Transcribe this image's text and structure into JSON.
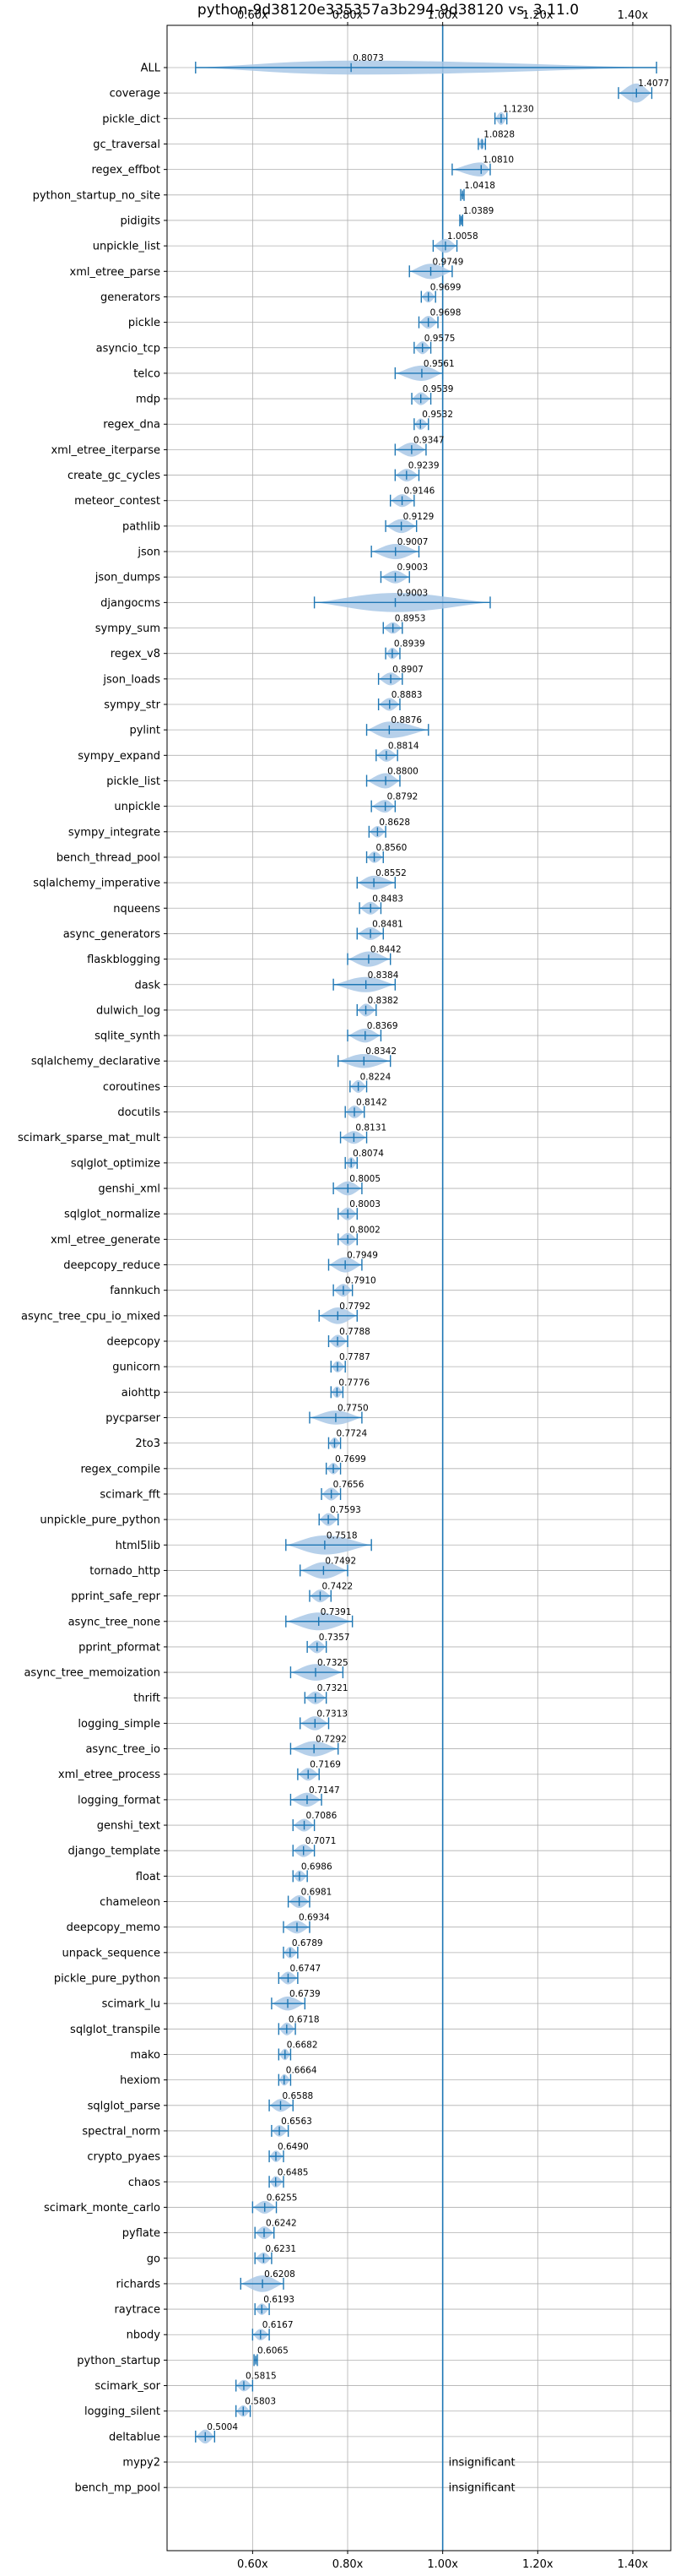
{
  "chart_data": {
    "type": "violin",
    "title": "python-9d38120e335357a3b294-9d38120 vs. 3.11.0",
    "xlim": [
      0.42,
      1.48
    ],
    "x_ticks": [
      0.6,
      0.8,
      1.0,
      1.2,
      1.4
    ],
    "x_tick_labels": [
      "0.60x",
      "0.80x",
      "1.00x",
      "1.20x",
      "1.40x"
    ],
    "reference_line": 1.0,
    "grid": true,
    "colors": {
      "violin": "#1f77b4",
      "violin_fill": "#a9c8e6",
      "reference": "#1f77b4",
      "grid": "#b0b0b0"
    },
    "rows": [
      {
        "name": "ALL",
        "label": "0.8073",
        "median": 0.8073,
        "min": 0.48,
        "max": 1.45,
        "width": 0.55
      },
      {
        "name": "coverage",
        "label": "1.4077",
        "median": 1.4077,
        "min": 1.37,
        "max": 1.44,
        "width": 0.75
      },
      {
        "name": "pickle_dict",
        "label": "1.1230",
        "median": 1.123,
        "min": 1.11,
        "max": 1.135,
        "width": 0.5
      },
      {
        "name": "gc_traversal",
        "label": "1.0828",
        "median": 1.0828,
        "min": 1.075,
        "max": 1.09,
        "width": 0.45
      },
      {
        "name": "regex_effbot",
        "label": "1.0810",
        "median": 1.081,
        "min": 1.02,
        "max": 1.1,
        "width": 0.55
      },
      {
        "name": "python_startup_no_site",
        "label": "1.0418",
        "median": 1.0418,
        "min": 1.038,
        "max": 1.045,
        "width": 0.3
      },
      {
        "name": "pidigits",
        "label": "1.0389",
        "median": 1.0389,
        "min": 1.036,
        "max": 1.042,
        "width": 0.3
      },
      {
        "name": "unpickle_list",
        "label": "1.0058",
        "median": 1.0058,
        "min": 0.98,
        "max": 1.03,
        "width": 0.55
      },
      {
        "name": "xml_etree_parse",
        "label": "0.9749",
        "median": 0.9749,
        "min": 0.93,
        "max": 1.02,
        "width": 0.6
      },
      {
        "name": "generators",
        "label": "0.9699",
        "median": 0.9699,
        "min": 0.955,
        "max": 0.985,
        "width": 0.45
      },
      {
        "name": "pickle",
        "label": "0.9698",
        "median": 0.9698,
        "min": 0.95,
        "max": 0.99,
        "width": 0.5
      },
      {
        "name": "asyncio_tcp",
        "label": "0.9575",
        "median": 0.9575,
        "min": 0.94,
        "max": 0.975,
        "width": 0.5
      },
      {
        "name": "telco",
        "label": "0.9561",
        "median": 0.9561,
        "min": 0.9,
        "max": 1.0,
        "width": 0.6
      },
      {
        "name": "mdp",
        "label": "0.9539",
        "median": 0.9539,
        "min": 0.935,
        "max": 0.975,
        "width": 0.5
      },
      {
        "name": "regex_dna",
        "label": "0.9532",
        "median": 0.9532,
        "min": 0.94,
        "max": 0.97,
        "width": 0.45
      },
      {
        "name": "xml_etree_iterparse",
        "label": "0.9347",
        "median": 0.9347,
        "min": 0.9,
        "max": 0.965,
        "width": 0.55
      },
      {
        "name": "create_gc_cycles",
        "label": "0.9239",
        "median": 0.9239,
        "min": 0.9,
        "max": 0.95,
        "width": 0.5
      },
      {
        "name": "meteor_contest",
        "label": "0.9146",
        "median": 0.9146,
        "min": 0.89,
        "max": 0.94,
        "width": 0.5
      },
      {
        "name": "pathlib",
        "label": "0.9129",
        "median": 0.9129,
        "min": 0.88,
        "max": 0.945,
        "width": 0.55
      },
      {
        "name": "json",
        "label": "0.9007",
        "median": 0.9007,
        "min": 0.85,
        "max": 0.95,
        "width": 0.6
      },
      {
        "name": "json_dumps",
        "label": "0.9003",
        "median": 0.9003,
        "min": 0.87,
        "max": 0.93,
        "width": 0.5
      },
      {
        "name": "djangocms",
        "label": "0.9003",
        "median": 0.9003,
        "min": 0.73,
        "max": 1.1,
        "width": 0.75
      },
      {
        "name": "sympy_sum",
        "label": "0.8953",
        "median": 0.8953,
        "min": 0.875,
        "max": 0.915,
        "width": 0.45
      },
      {
        "name": "regex_v8",
        "label": "0.8939",
        "median": 0.8939,
        "min": 0.88,
        "max": 0.91,
        "width": 0.45
      },
      {
        "name": "json_loads",
        "label": "0.8907",
        "median": 0.8907,
        "min": 0.865,
        "max": 0.915,
        "width": 0.5
      },
      {
        "name": "sympy_str",
        "label": "0.8883",
        "median": 0.8883,
        "min": 0.865,
        "max": 0.91,
        "width": 0.5
      },
      {
        "name": "pylint",
        "label": "0.8876",
        "median": 0.8876,
        "min": 0.84,
        "max": 0.97,
        "width": 0.65
      },
      {
        "name": "sympy_expand",
        "label": "0.8814",
        "median": 0.8814,
        "min": 0.86,
        "max": 0.905,
        "width": 0.5
      },
      {
        "name": "pickle_list",
        "label": "0.8800",
        "median": 0.88,
        "min": 0.84,
        "max": 0.91,
        "width": 0.6
      },
      {
        "name": "unpickle",
        "label": "0.8792",
        "median": 0.8792,
        "min": 0.85,
        "max": 0.9,
        "width": 0.5
      },
      {
        "name": "sympy_integrate",
        "label": "0.8628",
        "median": 0.8628,
        "min": 0.845,
        "max": 0.88,
        "width": 0.45
      },
      {
        "name": "bench_thread_pool",
        "label": "0.8560",
        "median": 0.856,
        "min": 0.84,
        "max": 0.875,
        "width": 0.45
      },
      {
        "name": "sqlalchemy_imperative",
        "label": "0.8552",
        "median": 0.8552,
        "min": 0.82,
        "max": 0.9,
        "width": 0.55
      },
      {
        "name": "nqueens",
        "label": "0.8483",
        "median": 0.8483,
        "min": 0.825,
        "max": 0.87,
        "width": 0.5
      },
      {
        "name": "async_generators",
        "label": "0.8481",
        "median": 0.8481,
        "min": 0.82,
        "max": 0.875,
        "width": 0.5
      },
      {
        "name": "flaskblogging",
        "label": "0.8442",
        "median": 0.8442,
        "min": 0.8,
        "max": 0.89,
        "width": 0.6
      },
      {
        "name": "dask",
        "label": "0.8384",
        "median": 0.8384,
        "min": 0.77,
        "max": 0.9,
        "width": 0.6
      },
      {
        "name": "dulwich_log",
        "label": "0.8382",
        "median": 0.8382,
        "min": 0.82,
        "max": 0.86,
        "width": 0.5
      },
      {
        "name": "sqlite_synth",
        "label": "0.8369",
        "median": 0.8369,
        "min": 0.8,
        "max": 0.87,
        "width": 0.55
      },
      {
        "name": "sqlalchemy_declarative",
        "label": "0.8342",
        "median": 0.8342,
        "min": 0.78,
        "max": 0.89,
        "width": 0.55
      },
      {
        "name": "coroutines",
        "label": "0.8224",
        "median": 0.8224,
        "min": 0.805,
        "max": 0.84,
        "width": 0.5
      },
      {
        "name": "docutils",
        "label": "0.8142",
        "median": 0.8142,
        "min": 0.795,
        "max": 0.835,
        "width": 0.5
      },
      {
        "name": "scimark_sparse_mat_mult",
        "label": "0.8131",
        "median": 0.8131,
        "min": 0.785,
        "max": 0.84,
        "width": 0.5
      },
      {
        "name": "sqlglot_optimize",
        "label": "0.8074",
        "median": 0.8074,
        "min": 0.795,
        "max": 0.82,
        "width": 0.45
      },
      {
        "name": "genshi_xml",
        "label": "0.8005",
        "median": 0.8005,
        "min": 0.77,
        "max": 0.83,
        "width": 0.55
      },
      {
        "name": "sqlglot_normalize",
        "label": "0.8003",
        "median": 0.8003,
        "min": 0.78,
        "max": 0.82,
        "width": 0.5
      },
      {
        "name": "xml_etree_generate",
        "label": "0.8002",
        "median": 0.8002,
        "min": 0.78,
        "max": 0.82,
        "width": 0.5
      },
      {
        "name": "deepcopy_reduce",
        "label": "0.7949",
        "median": 0.7949,
        "min": 0.76,
        "max": 0.83,
        "width": 0.6
      },
      {
        "name": "fannkuch",
        "label": "0.7910",
        "median": 0.791,
        "min": 0.77,
        "max": 0.81,
        "width": 0.5
      },
      {
        "name": "async_tree_cpu_io_mixed",
        "label": "0.7792",
        "median": 0.7792,
        "min": 0.74,
        "max": 0.82,
        "width": 0.65
      },
      {
        "name": "deepcopy",
        "label": "0.7788",
        "median": 0.7788,
        "min": 0.76,
        "max": 0.8,
        "width": 0.5
      },
      {
        "name": "gunicorn",
        "label": "0.7787",
        "median": 0.7787,
        "min": 0.765,
        "max": 0.795,
        "width": 0.45
      },
      {
        "name": "aiohttp",
        "label": "0.7776",
        "median": 0.7776,
        "min": 0.765,
        "max": 0.79,
        "width": 0.45
      },
      {
        "name": "pycparser",
        "label": "0.7750",
        "median": 0.775,
        "min": 0.72,
        "max": 0.83,
        "width": 0.55
      },
      {
        "name": "2to3",
        "label": "0.7724",
        "median": 0.7724,
        "min": 0.76,
        "max": 0.785,
        "width": 0.45
      },
      {
        "name": "regex_compile",
        "label": "0.7699",
        "median": 0.7699,
        "min": 0.755,
        "max": 0.785,
        "width": 0.45
      },
      {
        "name": "scimark_fft",
        "label": "0.7656",
        "median": 0.7656,
        "min": 0.745,
        "max": 0.785,
        "width": 0.5
      },
      {
        "name": "unpickle_pure_python",
        "label": "0.7593",
        "median": 0.7593,
        "min": 0.74,
        "max": 0.78,
        "width": 0.5
      },
      {
        "name": "html5lib",
        "label": "0.7518",
        "median": 0.7518,
        "min": 0.67,
        "max": 0.85,
        "width": 0.75
      },
      {
        "name": "tornado_http",
        "label": "0.7492",
        "median": 0.7492,
        "min": 0.7,
        "max": 0.8,
        "width": 0.65
      },
      {
        "name": "pprint_safe_repr",
        "label": "0.7422",
        "median": 0.7422,
        "min": 0.72,
        "max": 0.765,
        "width": 0.5
      },
      {
        "name": "async_tree_none",
        "label": "0.7391",
        "median": 0.7391,
        "min": 0.67,
        "max": 0.81,
        "width": 0.7
      },
      {
        "name": "pprint_pformat",
        "label": "0.7357",
        "median": 0.7357,
        "min": 0.715,
        "max": 0.755,
        "width": 0.5
      },
      {
        "name": "async_tree_memoization",
        "label": "0.7325",
        "median": 0.7325,
        "min": 0.68,
        "max": 0.79,
        "width": 0.65
      },
      {
        "name": "thrift",
        "label": "0.7321",
        "median": 0.7321,
        "min": 0.71,
        "max": 0.755,
        "width": 0.5
      },
      {
        "name": "logging_simple",
        "label": "0.7313",
        "median": 0.7313,
        "min": 0.7,
        "max": 0.76,
        "width": 0.55
      },
      {
        "name": "async_tree_io",
        "label": "0.7292",
        "median": 0.7292,
        "min": 0.68,
        "max": 0.78,
        "width": 0.6
      },
      {
        "name": "xml_etree_process",
        "label": "0.7169",
        "median": 0.7169,
        "min": 0.695,
        "max": 0.74,
        "width": 0.5
      },
      {
        "name": "logging_format",
        "label": "0.7147",
        "median": 0.7147,
        "min": 0.68,
        "max": 0.745,
        "width": 0.55
      },
      {
        "name": "genshi_text",
        "label": "0.7086",
        "median": 0.7086,
        "min": 0.685,
        "max": 0.73,
        "width": 0.5
      },
      {
        "name": "django_template",
        "label": "0.7071",
        "median": 0.7071,
        "min": 0.685,
        "max": 0.73,
        "width": 0.5
      },
      {
        "name": "float",
        "label": "0.6986",
        "median": 0.6986,
        "min": 0.685,
        "max": 0.715,
        "width": 0.45
      },
      {
        "name": "chameleon",
        "label": "0.6981",
        "median": 0.6981,
        "min": 0.675,
        "max": 0.72,
        "width": 0.5
      },
      {
        "name": "deepcopy_memo",
        "label": "0.6934",
        "median": 0.6934,
        "min": 0.665,
        "max": 0.72,
        "width": 0.5
      },
      {
        "name": "unpack_sequence",
        "label": "0.6789",
        "median": 0.6789,
        "min": 0.665,
        "max": 0.695,
        "width": 0.45
      },
      {
        "name": "pickle_pure_python",
        "label": "0.6747",
        "median": 0.6747,
        "min": 0.655,
        "max": 0.695,
        "width": 0.5
      },
      {
        "name": "scimark_lu",
        "label": "0.6739",
        "median": 0.6739,
        "min": 0.64,
        "max": 0.71,
        "width": 0.55
      },
      {
        "name": "sqlglot_transpile",
        "label": "0.6718",
        "median": 0.6718,
        "min": 0.655,
        "max": 0.69,
        "width": 0.5
      },
      {
        "name": "mako",
        "label": "0.6682",
        "median": 0.6682,
        "min": 0.655,
        "max": 0.68,
        "width": 0.45
      },
      {
        "name": "hexiom",
        "label": "0.6664",
        "median": 0.6664,
        "min": 0.655,
        "max": 0.68,
        "width": 0.45
      },
      {
        "name": "sqlglot_parse",
        "label": "0.6588",
        "median": 0.6588,
        "min": 0.635,
        "max": 0.685,
        "width": 0.5
      },
      {
        "name": "spectral_norm",
        "label": "0.6563",
        "median": 0.6563,
        "min": 0.64,
        "max": 0.675,
        "width": 0.45
      },
      {
        "name": "crypto_pyaes",
        "label": "0.6490",
        "median": 0.649,
        "min": 0.635,
        "max": 0.665,
        "width": 0.45
      },
      {
        "name": "chaos",
        "label": "0.6485",
        "median": 0.6485,
        "min": 0.635,
        "max": 0.665,
        "width": 0.45
      },
      {
        "name": "scimark_monte_carlo",
        "label": "0.6255",
        "median": 0.6255,
        "min": 0.6,
        "max": 0.65,
        "width": 0.5
      },
      {
        "name": "pyflate",
        "label": "0.6242",
        "median": 0.6242,
        "min": 0.605,
        "max": 0.645,
        "width": 0.5
      },
      {
        "name": "go",
        "label": "0.6231",
        "median": 0.6231,
        "min": 0.605,
        "max": 0.64,
        "width": 0.45
      },
      {
        "name": "richards",
        "label": "0.6208",
        "median": 0.6208,
        "min": 0.575,
        "max": 0.665,
        "width": 0.65
      },
      {
        "name": "raytrace",
        "label": "0.6193",
        "median": 0.6193,
        "min": 0.605,
        "max": 0.635,
        "width": 0.45
      },
      {
        "name": "nbody",
        "label": "0.6167",
        "median": 0.6167,
        "min": 0.6,
        "max": 0.635,
        "width": 0.45
      },
      {
        "name": "python_startup",
        "label": "0.6065",
        "median": 0.6065,
        "min": 0.603,
        "max": 0.61,
        "width": 0.3
      },
      {
        "name": "scimark_sor",
        "label": "0.5815",
        "median": 0.5815,
        "min": 0.565,
        "max": 0.6,
        "width": 0.45
      },
      {
        "name": "logging_silent",
        "label": "0.5803",
        "median": 0.5803,
        "min": 0.565,
        "max": 0.595,
        "width": 0.45
      },
      {
        "name": "deltablue",
        "label": "0.5004",
        "median": 0.5004,
        "min": 0.48,
        "max": 0.52,
        "width": 0.55
      },
      {
        "name": "mypy2",
        "label": "insignificant",
        "median": null,
        "min": null,
        "max": null,
        "width": 0
      },
      {
        "name": "bench_mp_pool",
        "label": "insignificant",
        "median": null,
        "min": null,
        "max": null,
        "width": 0
      }
    ]
  }
}
